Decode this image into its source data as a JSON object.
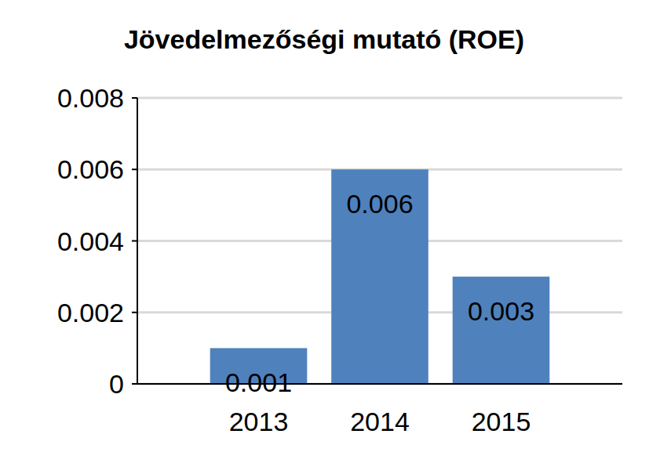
{
  "chart_data": {
    "type": "bar",
    "title": "Jövedelmezőségi mutató (ROE)",
    "categories": [
      "2013",
      "2014",
      "2015"
    ],
    "values": [
      0.001,
      0.006,
      0.003
    ],
    "color": "#4f81bd",
    "ylim": [
      0,
      0.008
    ],
    "yticks": [
      0,
      0.002,
      0.004,
      0.006,
      0.008
    ],
    "grid": true,
    "data_labels": true
  }
}
